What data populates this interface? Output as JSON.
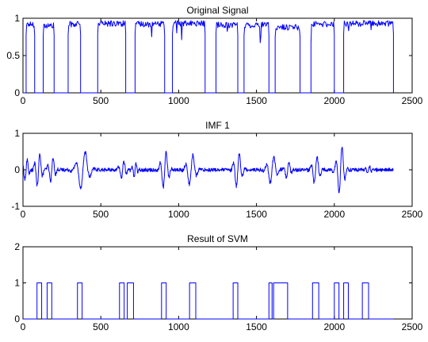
{
  "chart_data": [
    {
      "type": "line",
      "title": "Original Signal",
      "xlim": [
        0,
        2500
      ],
      "ylim": [
        0,
        1
      ],
      "xticks": [
        0,
        500,
        1000,
        1500,
        2000,
        2500
      ],
      "yticks": [
        0,
        0.5,
        1
      ],
      "grid": false,
      "color": "#0000ff",
      "segments": [
        {
          "x_start": 20,
          "x_end": 75,
          "level": 0.92
        },
        {
          "x_start": 130,
          "x_end": 200,
          "level": 0.9
        },
        {
          "x_start": 290,
          "x_end": 370,
          "level": 0.92
        },
        {
          "x_start": 480,
          "x_end": 660,
          "level": 0.93
        },
        {
          "x_start": 720,
          "x_end": 910,
          "level": 0.92
        },
        {
          "x_start": 960,
          "x_end": 1170,
          "level": 0.93
        },
        {
          "x_start": 1240,
          "x_end": 1380,
          "level": 0.91
        },
        {
          "x_start": 1420,
          "x_end": 1580,
          "level": 0.91
        },
        {
          "x_start": 1620,
          "x_end": 1780,
          "level": 0.88
        },
        {
          "x_start": 1850,
          "x_end": 2000,
          "level": 0.92
        },
        {
          "x_start": 2060,
          "x_end": 2380,
          "level": 0.93
        }
      ],
      "x_end": 2380
    },
    {
      "type": "line",
      "title": "IMF 1",
      "xlim": [
        0,
        2500
      ],
      "ylim": [
        -1,
        1
      ],
      "xticks": [
        0,
        500,
        1000,
        1500,
        2000,
        2500
      ],
      "yticks": [
        -1,
        0,
        1
      ],
      "grid": false,
      "color": "#0000ff",
      "bursts": [
        {
          "x": 20,
          "amplitude": 0.3,
          "width": 35
        },
        {
          "x": 100,
          "amplitude": 0.5,
          "width": 40
        },
        {
          "x": 185,
          "amplitude": 0.35,
          "width": 40
        },
        {
          "x": 385,
          "amplitude": 0.55,
          "width": 70
        },
        {
          "x": 640,
          "amplitude": 0.25,
          "width": 40
        },
        {
          "x": 720,
          "amplitude": 0.2,
          "width": 30
        },
        {
          "x": 910,
          "amplitude": 0.55,
          "width": 45
        },
        {
          "x": 1080,
          "amplitude": 0.45,
          "width": 55
        },
        {
          "x": 1380,
          "amplitude": 0.5,
          "width": 45
        },
        {
          "x": 1600,
          "amplitude": 0.4,
          "width": 55
        },
        {
          "x": 1700,
          "amplitude": 0.25,
          "width": 40
        },
        {
          "x": 1880,
          "amplitude": 0.4,
          "width": 45
        },
        {
          "x": 2040,
          "amplitude": 0.7,
          "width": 45
        },
        {
          "x": 2220,
          "amplitude": 0.12,
          "width": 30
        }
      ],
      "noise_amplitude": 0.05,
      "x_end": 2380
    },
    {
      "type": "line",
      "title": "Result of SVM",
      "xlim": [
        0,
        2500
      ],
      "ylim": [
        0,
        2
      ],
      "xticks": [
        0,
        500,
        1000,
        1500,
        2000,
        2500
      ],
      "yticks": [
        0,
        1,
        2
      ],
      "grid": false,
      "color": "#0000ff",
      "pulses": [
        [
          90,
          120
        ],
        [
          155,
          185
        ],
        [
          350,
          380
        ],
        [
          620,
          650
        ],
        [
          670,
          710
        ],
        [
          890,
          920
        ],
        [
          1070,
          1110
        ],
        [
          1350,
          1380
        ],
        [
          1580,
          1600
        ],
        [
          1610,
          1700
        ],
        [
          1860,
          1900
        ],
        [
          2000,
          2030
        ],
        [
          2060,
          2090
        ],
        [
          2180,
          2220
        ]
      ],
      "x_end": 2380
    }
  ]
}
